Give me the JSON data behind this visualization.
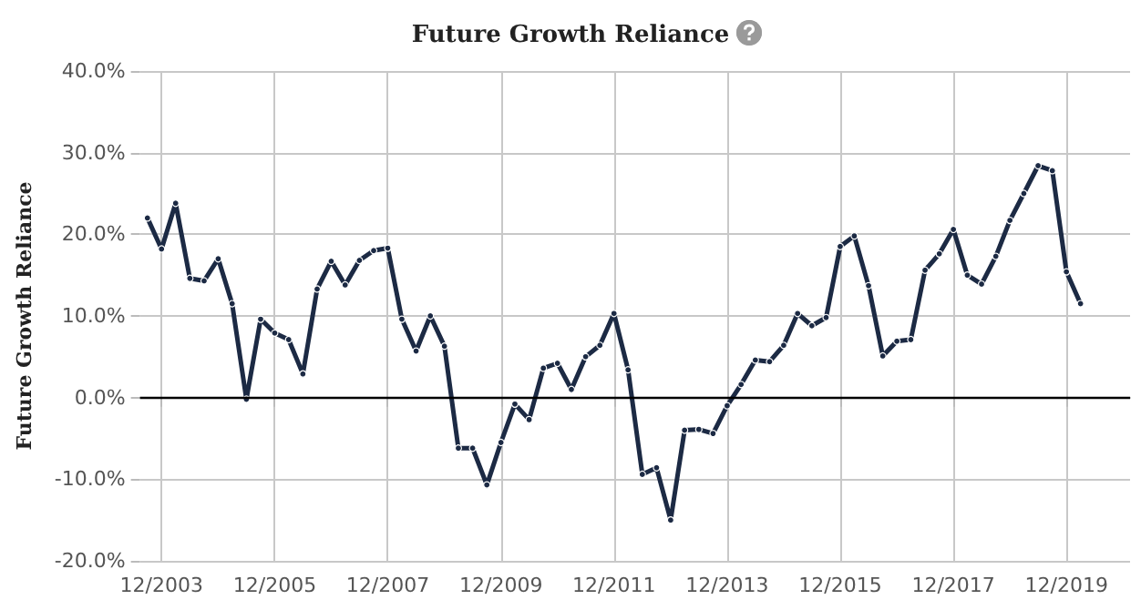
{
  "chart_data": {
    "type": "line",
    "title": "Future Growth Reliance",
    "ylabel": "Future Growth Reliance",
    "x": [
      "2003-09",
      "2003-12",
      "2004-03",
      "2004-06",
      "2004-09",
      "2004-12",
      "2005-03",
      "2005-06",
      "2005-09",
      "2005-12",
      "2006-03",
      "2006-06",
      "2006-09",
      "2006-12",
      "2007-03",
      "2007-06",
      "2007-09",
      "2007-12",
      "2008-03",
      "2008-06",
      "2008-09",
      "2008-12",
      "2009-03",
      "2009-06",
      "2009-09",
      "2009-12",
      "2010-03",
      "2010-06",
      "2010-09",
      "2010-12",
      "2011-03",
      "2011-06",
      "2011-09",
      "2011-12",
      "2012-03",
      "2012-06",
      "2012-09",
      "2012-12",
      "2013-03",
      "2013-06",
      "2013-09",
      "2013-12",
      "2014-03",
      "2014-06",
      "2014-09",
      "2014-12",
      "2015-03",
      "2015-06",
      "2015-09",
      "2015-12",
      "2016-03",
      "2016-06",
      "2016-09",
      "2016-12",
      "2017-03",
      "2017-06",
      "2017-09",
      "2017-12",
      "2018-03",
      "2018-06",
      "2018-09",
      "2018-12",
      "2019-03",
      "2019-06",
      "2019-09",
      "2019-12",
      "2020-03"
    ],
    "series": [
      {
        "color": "#1c2a44",
        "values": [
          22.0,
          18.2,
          23.8,
          14.6,
          14.3,
          17.0,
          11.5,
          -0.2,
          9.6,
          7.9,
          7.1,
          2.9,
          13.3,
          16.7,
          13.8,
          16.8,
          18.0,
          18.3,
          9.6,
          5.7,
          10.0,
          6.3,
          -6.2,
          -6.2,
          -10.7,
          -5.5,
          -0.8,
          -2.7,
          3.6,
          4.2,
          1.0,
          5.0,
          6.4,
          10.3,
          3.4,
          -9.4,
          -8.6,
          -15.0,
          -4.0,
          -3.9,
          -4.4,
          -1.0,
          1.6,
          4.6,
          4.4,
          6.4,
          10.3,
          8.8,
          9.8,
          18.5,
          19.8,
          13.7,
          5.1,
          6.9,
          7.1,
          15.6,
          17.6,
          20.6,
          15.0,
          13.9,
          17.3,
          21.7,
          25.0,
          28.4,
          27.8,
          15.4,
          11.5
        ]
      }
    ],
    "xlim": [
      "2003-07-15",
      "2021-01-15"
    ],
    "xticks": [
      {
        "value": "2003-12",
        "label": "12/2003"
      },
      {
        "value": "2005-12",
        "label": "12/2005"
      },
      {
        "value": "2007-12",
        "label": "12/2007"
      },
      {
        "value": "2009-12",
        "label": "12/2009"
      },
      {
        "value": "2011-12",
        "label": "12/2011"
      },
      {
        "value": "2013-12",
        "label": "12/2013"
      },
      {
        "value": "2015-12",
        "label": "12/2015"
      },
      {
        "value": "2017-12",
        "label": "12/2017"
      },
      {
        "value": "2019-12",
        "label": "12/2019"
      }
    ],
    "ylim": [
      -20,
      40
    ],
    "yticks": [
      {
        "value": -20,
        "label": "-20.0%"
      },
      {
        "value": -10,
        "label": "-10.0%"
      },
      {
        "value": 0,
        "label": "0.0%"
      },
      {
        "value": 10,
        "label": "10.0%"
      },
      {
        "value": 20,
        "label": "20.0%"
      },
      {
        "value": 30,
        "label": "30.0%"
      },
      {
        "value": 40,
        "label": "40.0%"
      }
    ],
    "ref_lines": [
      {
        "axis": "y",
        "value": 0,
        "color": "#000000"
      }
    ],
    "grid": true,
    "marker": "circle",
    "line_style": "solid"
  }
}
